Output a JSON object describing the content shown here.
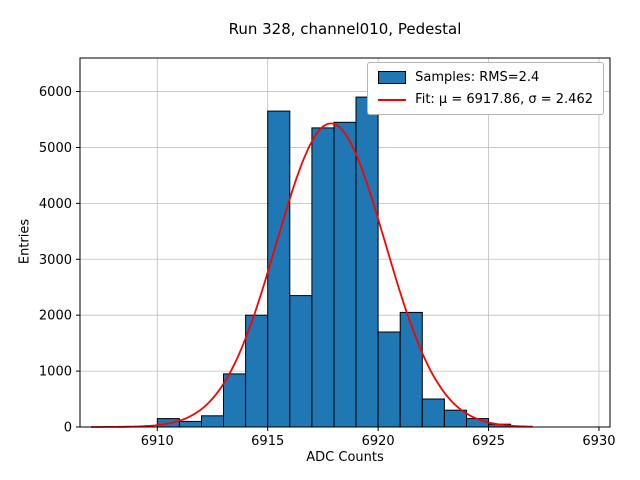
{
  "chart_data": {
    "type": "bar",
    "subtype": "histogram-with-gaussian-fit",
    "title": "Run 328, channel010, Pedestal",
    "xlabel": "ADC Counts",
    "ylabel": "Entries",
    "xlim": [
      6906.5,
      6930.5
    ],
    "ylim": [
      0,
      6600
    ],
    "xticks": [
      6910,
      6915,
      6920,
      6925,
      6930
    ],
    "yticks": [
      0,
      1000,
      2000,
      3000,
      4000,
      5000,
      6000
    ],
    "grid": true,
    "grid_color": "#bfbfbf",
    "bar_color": "#1f77b4",
    "bar_edge_color": "#000000",
    "fit_color": "#ff0000",
    "bins": {
      "width": 1,
      "left_edges": [
        6910,
        6911,
        6912,
        6913,
        6914,
        6915,
        6916,
        6917,
        6918,
        6919,
        6920,
        6921,
        6922,
        6923,
        6924,
        6925
      ],
      "counts": [
        150,
        100,
        200,
        950,
        2000,
        5650,
        2350,
        5350,
        5450,
        5900,
        1700,
        2050,
        500,
        300,
        150,
        50
      ]
    },
    "fit": {
      "type": "gaussian",
      "mu": 6917.86,
      "sigma": 2.462,
      "amplitude": 5430,
      "x_range": [
        6907,
        6927
      ]
    },
    "stats": {
      "rms": "2.4",
      "mu": "6917.86",
      "sigma": "2.462"
    },
    "legend": {
      "position": "upper right",
      "entries": [
        {
          "swatch": "patch",
          "label": "Samples: RMS=2.4"
        },
        {
          "swatch": "line",
          "label": "Fit: μ = 6917.86, σ = 2.462"
        }
      ]
    }
  }
}
